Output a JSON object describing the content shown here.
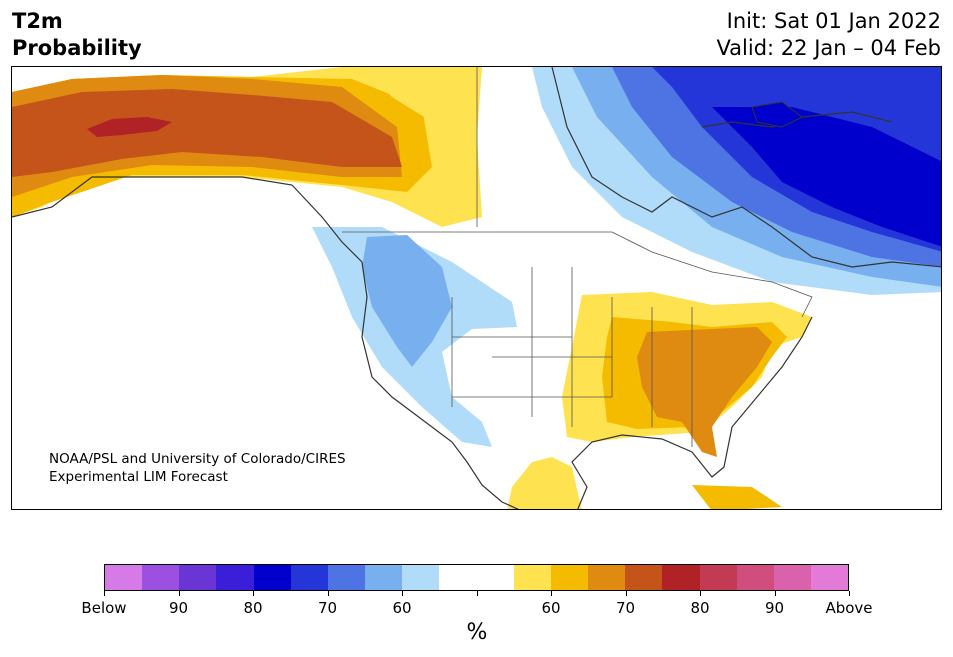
{
  "header": {
    "title_line1": "T2m",
    "title_line2": "Probability",
    "init": "Init: Sat 01 Jan 2022",
    "valid": "Valid: 22 Jan – 04 Feb"
  },
  "credit": {
    "line1": "NOAA/PSL and University of Colorado/CIRES",
    "line2": "Experimental LIM Forecast"
  },
  "legend": {
    "unit": "%",
    "colors": [
      "#d67ae8",
      "#9b50e0",
      "#6b35d6",
      "#3b1fd8",
      "#0000cc",
      "#2436d8",
      "#4e73e2",
      "#78afef",
      "#b0dcfa",
      "#ffffff",
      "#ffffff",
      "#ffe24f",
      "#f4bb00",
      "#df8a10",
      "#c4541a",
      "#b12226",
      "#c23a54",
      "#d04e7e",
      "#da62ac",
      "#e47ad8"
    ],
    "tick_labels": [
      "Below",
      "90",
      "80",
      "70",
      "60",
      "",
      "60",
      "70",
      "80",
      "90",
      "Above"
    ]
  },
  "colors": {
    "land": "#ffffff",
    "ocean": "#ffffff",
    "coast": "#333333",
    "border": "#555555"
  }
}
